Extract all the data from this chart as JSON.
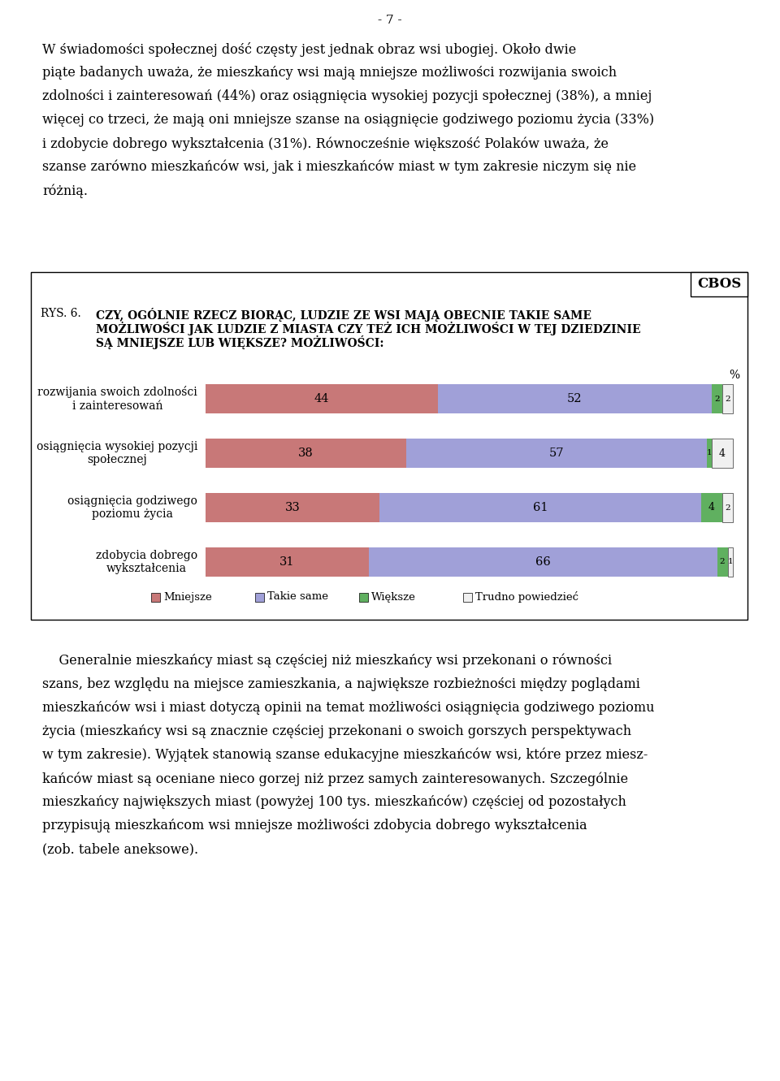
{
  "page_number": "- 7 -",
  "paragraph1_lines": [
    "W świadomości społecznej dość częsty jest jednak obraz wsi ubogiej. Około dwie",
    "piąte badanych uważa, że mieszkańcy wsi mają mniejsze możliwości rozwijania swoich",
    "zdolności i zainteresowań (44%) oraz osiągnięcia wysokiej pozycji społecznej (38%), a mniej",
    "więcej co trzeci, że mają oni mniejsze szanse na osiągnięcie godziwego poziomu życia (33%)",
    "i zdobycie dobrego wykształcenia (31%). Równocześnie większość Polaków uważa, że",
    "szanse zarówno mieszkańców wsi, jak i mieszkańców miast w tym zakresie niczym się nie",
    "różnią."
  ],
  "chart_label": "RYS. 6.",
  "chart_title_bold_line1": "CZY, OGÓLNIE RZECZ BIORĄC, LUDZIE ZE WSI MAJĄ OBECNIE TAKIE SAME",
  "chart_title_bold_line2": "MOŻLIWOŚCI JAK LUDZIE Z MIASTA CZY TEŻ ICH MOŻLIWOŚCI W TEJ DZIEDZINIE",
  "chart_title_bold_line3": "SĄ MNIEJSZE LUB WIĘKSZE? MOŻLIWOŚCI:",
  "cbos_label": "CBOS",
  "percent_label": "%",
  "categories": [
    "rozwijania swoich zdolności\ni zainteresowań",
    "osiągnięcia wysokiej pozycji\nspołecznej",
    "osiągnięcia godziwego\npoziomu życia",
    "zdobycia dobrego\nwykształcenia"
  ],
  "mniejsze": [
    44,
    38,
    33,
    31
  ],
  "takie_same": [
    52,
    57,
    61,
    66
  ],
  "wieksze": [
    2,
    1,
    4,
    2
  ],
  "trudno": [
    2,
    4,
    2,
    1
  ],
  "color_mniejsze": "#c87878",
  "color_takie_same": "#a0a0d8",
  "color_wieksze": "#60b060",
  "color_trudno": "#f0f0f0",
  "legend_labels": [
    "Mniejsze",
    "Takie same",
    "Większe",
    "Trudno powiedzieć"
  ],
  "paragraph2_lines": [
    "    Generalnie mieszkańcy miast są częściej niż mieszkańcy wsi przekonani o równości",
    "szans, bez względu na miejsce zamieszkania, a największe rozbieżności między poglądami",
    "mieszkańców wsi i miast dotyczą opinii na temat możliwości osiągnięcia godziwego poziomu",
    "życia (mieszkańcy wsi są znacznie częściej przekonani o swoich gorszych perspektywach",
    "w tym zakresie). Wyjątek stanowią szanse edukacyjne mieszkańców wsi, które przez miesz-",
    "kańców miast są oceniane nieco gorzej niż przez samych zainteresowanych. Szczególnie",
    "mieszkańcy największych miast (powyżej 100 tys. mieszkańców) częściej od pozostałych",
    "przypisują mieszkańcom wsi mniejsze możliwości zdobycia dobrego wykształcenia",
    "(zob. tabele aneksowe)."
  ]
}
